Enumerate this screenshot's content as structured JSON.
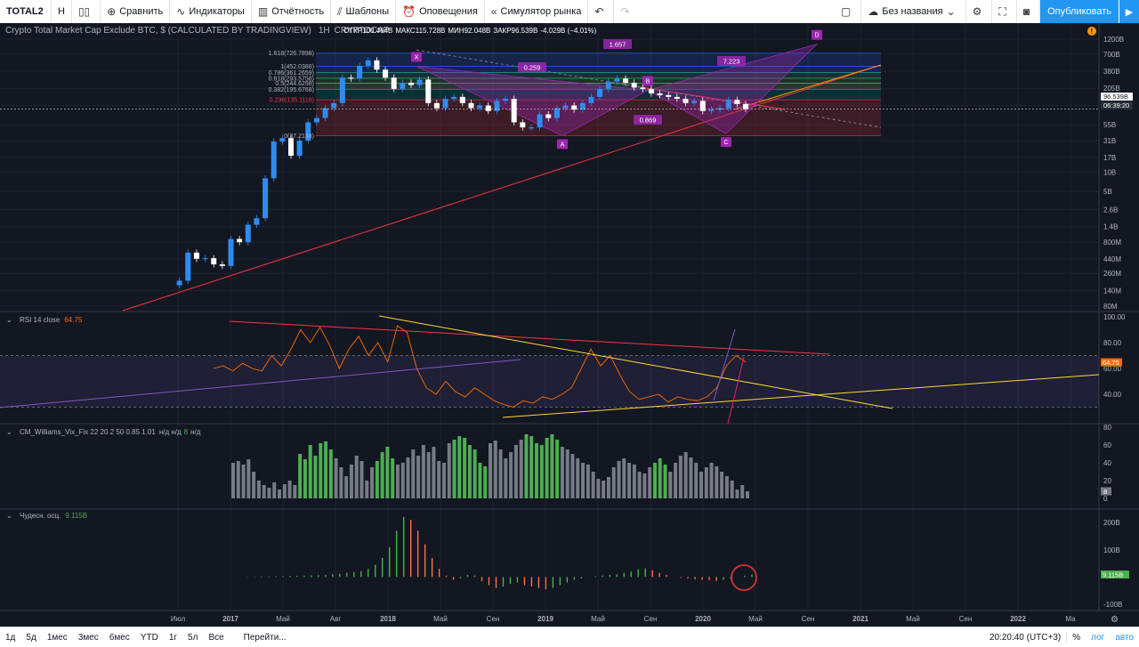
{
  "toolbar": {
    "symbol": "TOTAL2",
    "interval": "Н",
    "compare": "Сравнить",
    "indicators": "Индикаторы",
    "financials": "Отчётность",
    "templates": "Шаблоны",
    "alerts": "Оповещения",
    "replay": "Симулятор рынка",
    "layout_name": "Без названия",
    "publish": "Опубликовать"
  },
  "bottombar": {
    "ranges": [
      "1д",
      "5д",
      "1мес",
      "3мес",
      "6мес",
      "YTD",
      "1г",
      "5л",
      "Все"
    ],
    "goto": "Перейти...",
    "time": "20:20:40 (UTC+3)",
    "percent": "%",
    "log": "лог",
    "auto": "авто"
  },
  "colors": {
    "up": "#2e8cf0",
    "down": "#ffffff",
    "bg": "#131722",
    "axis": "#2a2e39",
    "rsi": "#ff6d00",
    "vix_green": "#4caf50",
    "vix_gray": "#787b86",
    "osc_up": "#4caf50",
    "osc_down": "#ff7043",
    "fib_line": "#9598a1",
    "pattern": "#9c27b0",
    "trend_red": "#f23645"
  },
  "chart_data": [
    {
      "type": "candlestick",
      "title": "Crypto Total Market Cap Exclude BTC, $ (CALCULATED BY TRADINGVIEW)",
      "interval": "1Н",
      "exchange": "CRYPTOCAP",
      "ohlc_labels": {
        "open": "ОТКР100.464B",
        "high": "МАКС115.728B",
        "low": "МИН92.048B",
        "close": "ЗАКР96.539B",
        "change": "-4.029B (−4.01%)"
      },
      "scale": "log",
      "y_ticks": [
        "1200B",
        "700B",
        "380B",
        "205B",
        "110B",
        "55B",
        "31B",
        "17B",
        "10B",
        "5B",
        "2.6B",
        "1.4B",
        "800M",
        "440M",
        "260M",
        "140M",
        "80M"
      ],
      "last_price": "96.539B",
      "countdown": "06:39:20",
      "x_ticks": [
        "Июл",
        "2017",
        "Май",
        "Авг",
        "2018",
        "Май",
        "Сен",
        "2019",
        "Май",
        "Сен",
        "2020",
        "Май",
        "Сен",
        "2021",
        "Май",
        "Сен",
        "2022",
        "Ма"
      ],
      "price_path_B": [
        0.17,
        0.2,
        0.55,
        0.44,
        0.45,
        0.36,
        0.34,
        0.9,
        0.8,
        1.5,
        1.9,
        8,
        30,
        34,
        18,
        31,
        60,
        70,
        100,
        120,
        300,
        290,
        460,
        560,
        400,
        300,
        200,
        250,
        230,
        280,
        120,
        100,
        140,
        150,
        120,
        100,
        110,
        90,
        130,
        140,
        60,
        50,
        50,
        80,
        70,
        100,
        110,
        95,
        120,
        150,
        200,
        260,
        290,
        250,
        210,
        200,
        170,
        160,
        150,
        140,
        120,
        130,
        90,
        95,
        100,
        135,
        116,
        96.5
      ],
      "fib_levels": [
        {
          "label": "1.618(726.7898)",
          "value": 726.7898
        },
        {
          "label": "1(452.0388)",
          "value": 452.0388
        },
        {
          "label": "0.786(361.2659)",
          "value": 361.2659
        },
        {
          "label": "0.618(293.5758)",
          "value": 293.5758
        },
        {
          "label": "0.5(244.6298)",
          "value": 244.6298
        },
        {
          "label": "0.382(195.6768)",
          "value": 195.6768
        },
        {
          "label": "0.236(135.1118)",
          "value": 135.1118
        },
        {
          "label": "0(37.2138)",
          "value": 37.2138
        }
      ],
      "harmonic_points": [
        "X",
        "A",
        "B",
        "C",
        "D"
      ],
      "harmonic_ratios": [
        "1.657",
        "0.259",
        "7.223",
        "0.869"
      ]
    },
    {
      "type": "line",
      "title": "RSI 14 close",
      "current": "64.75",
      "y_ticks": [
        "100.00",
        "80.00",
        "60.00",
        "40.00"
      ],
      "bands": [
        70,
        30
      ],
      "ylim": [
        20,
        100
      ],
      "values": [
        60,
        62,
        58,
        64,
        60,
        58,
        70,
        62,
        75,
        90,
        80,
        92,
        78,
        60,
        75,
        85,
        70,
        80,
        65,
        93,
        88,
        60,
        45,
        40,
        50,
        42,
        38,
        45,
        40,
        35,
        32,
        30,
        35,
        33,
        38,
        36,
        40,
        45,
        60,
        75,
        62,
        70,
        55,
        42,
        36,
        38,
        40,
        34,
        38,
        36,
        35,
        38,
        45,
        62,
        70,
        65
      ]
    },
    {
      "type": "bar",
      "title": "CM_Williams_Vix_Fix 22 20 2 50 0.85 1.01",
      "title_suffix": "н/д н/д",
      "title_num": "8",
      "title_end": "н/д",
      "current": "8",
      "y_ticks": [
        "80",
        "60",
        "40",
        "20",
        "0"
      ],
      "ylim": [
        0,
        80
      ],
      "values": [
        40,
        42,
        38,
        44,
        30,
        20,
        15,
        12,
        18,
        10,
        16,
        20,
        15,
        50,
        44,
        60,
        48,
        62,
        64,
        55,
        45,
        35,
        25,
        38,
        48,
        42,
        20,
        35,
        42,
        52,
        58,
        45,
        38,
        40,
        46,
        55,
        48,
        60,
        52,
        58,
        42,
        40,
        62,
        66,
        70,
        68,
        60,
        55,
        40,
        36,
        62,
        65,
        55,
        45,
        52,
        60,
        66,
        72,
        70,
        62,
        60,
        68,
        72,
        66,
        58,
        55,
        50,
        45,
        40,
        38,
        30,
        22,
        20,
        24,
        35,
        42,
        45,
        40,
        38,
        30,
        28,
        35,
        40,
        45,
        38,
        30,
        40,
        48,
        52,
        46,
        40,
        30,
        35,
        40,
        36,
        30,
        25,
        20,
        10,
        15,
        8
      ],
      "green_ranges": [
        [
          13,
          19
        ],
        [
          28,
          31
        ],
        [
          43,
          49
        ],
        [
          57,
          63
        ],
        [
          82,
          84
        ]
      ]
    },
    {
      "type": "histogram",
      "title": "Чудесн. осц.",
      "current": "9.115B",
      "y_ticks": [
        "200B",
        "100B",
        "-100B"
      ],
      "ylim": [
        -110,
        230
      ],
      "values": [
        0,
        0,
        1,
        1,
        2,
        2,
        3,
        3,
        4,
        4,
        5,
        6,
        7,
        8,
        10,
        12,
        15,
        18,
        22,
        30,
        45,
        70,
        110,
        170,
        220,
        210,
        170,
        120,
        70,
        30,
        5,
        -10,
        -5,
        8,
        5,
        -15,
        -30,
        -40,
        -35,
        -25,
        -20,
        -30,
        -35,
        -40,
        -45,
        -40,
        -30,
        -20,
        -10,
        -5,
        0,
        3,
        5,
        8,
        10,
        15,
        20,
        28,
        32,
        25,
        15,
        8,
        0,
        -3,
        -5,
        -8,
        -10,
        -12,
        -14,
        -10,
        -5,
        0,
        5,
        9
      ]
    }
  ]
}
